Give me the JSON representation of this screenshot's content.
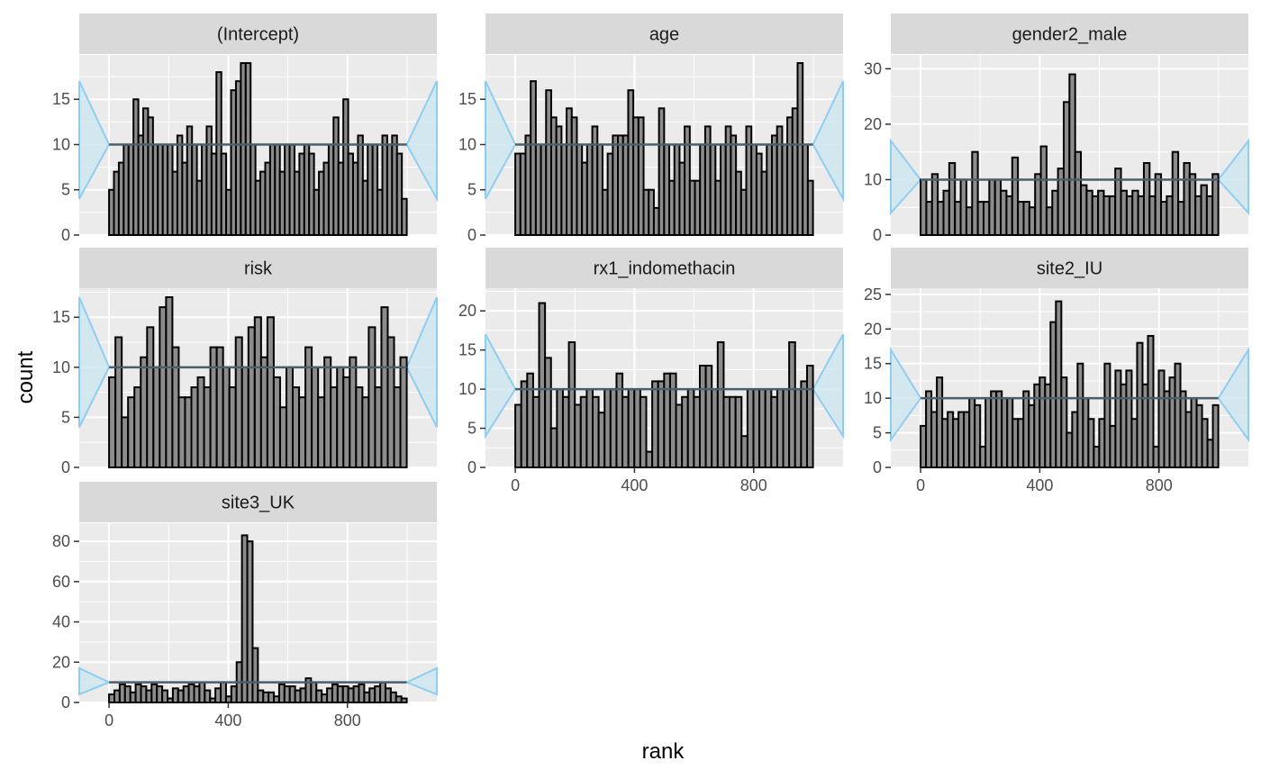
{
  "chart_data": {
    "type": "bar",
    "chart_kind": "rank histogram (faceted)",
    "xlabel": "rank",
    "ylabel": "count",
    "x_ticks": [
      0,
      400,
      800
    ],
    "xlim": [
      -100,
      1100
    ],
    "bin_count": 50,
    "rank_range": [
      0,
      999
    ],
    "expected_count": 10,
    "band_bottom": [
      4,
      17
    ],
    "band_waist": [
      10,
      10
    ],
    "colors": {
      "panel_bg": "#ebebeb",
      "grid": "#ffffff",
      "strip_bg": "#d9d9d9",
      "bar_fill": "#8c8c8c",
      "bar_outline": "#000000",
      "band_fill": "#cfe6ef",
      "band_line": "#90cdf2",
      "mean_line": "#4a5f6a"
    },
    "facets": [
      {
        "name": "(Intercept)",
        "ylim": [
          0,
          19.9
        ],
        "y_ticks": [
          0,
          5,
          10,
          15
        ],
        "values": [
          5,
          7,
          8,
          10,
          10,
          15,
          11,
          14,
          13,
          10,
          10,
          10,
          10,
          7,
          11,
          8,
          12,
          10,
          6,
          10,
          12,
          9,
          18,
          9,
          5,
          16,
          17,
          19,
          19,
          10,
          6,
          7,
          8,
          10,
          10,
          7,
          10,
          10,
          7,
          9,
          10,
          9,
          5,
          7,
          8,
          10,
          13,
          8,
          15,
          9,
          8,
          11,
          6,
          10,
          10,
          5,
          11,
          10,
          11,
          9,
          4
        ]
      },
      {
        "name": "age",
        "ylim": [
          0,
          19.9
        ],
        "y_ticks": [
          0,
          5,
          10,
          15
        ],
        "values": [
          9,
          9,
          11,
          17,
          10,
          10,
          16,
          13,
          12,
          10,
          14,
          13,
          10,
          8,
          10,
          12,
          10,
          5,
          9,
          11,
          11,
          11,
          16,
          13,
          13,
          5,
          5,
          3,
          14,
          10,
          6,
          10,
          8,
          12,
          6,
          6,
          10,
          12,
          10,
          6,
          10,
          12,
          11,
          7,
          5,
          12,
          10,
          9,
          7,
          10,
          11,
          12,
          10,
          13,
          14,
          19,
          10,
          6
        ]
      },
      {
        "name": "gender2_male",
        "ylim": [
          0,
          32.5
        ],
        "y_ticks": [
          0,
          10,
          20,
          30
        ],
        "values": [
          10,
          6,
          11,
          6,
          8,
          13,
          6,
          10,
          5,
          15,
          6,
          6,
          10,
          10,
          8,
          7,
          14,
          6,
          6,
          5,
          11,
          16,
          5,
          8,
          12,
          24,
          29,
          15,
          9,
          8,
          7,
          8,
          7,
          7,
          12,
          8,
          7,
          8,
          7,
          13,
          7,
          11,
          6,
          7,
          15,
          6,
          13,
          11,
          7,
          9,
          7,
          11
        ]
      },
      {
        "name": "risk",
        "ylim": [
          0,
          17.9
        ],
        "y_ticks": [
          0,
          5,
          10,
          15
        ],
        "values": [
          9,
          13,
          5,
          7,
          8,
          11,
          14,
          10,
          16,
          17,
          12,
          7,
          7,
          8,
          9,
          8,
          12,
          12,
          10,
          8,
          13,
          10,
          14,
          15,
          11,
          15,
          9,
          6,
          10,
          8,
          7,
          12,
          10,
          7,
          11,
          8,
          10,
          9,
          11,
          8,
          7,
          14,
          8,
          16,
          13,
          8,
          11
        ]
      },
      {
        "name": "rx1_indomethacin",
        "ylim": [
          0,
          22.9
        ],
        "y_ticks": [
          0,
          5,
          10,
          15,
          20
        ],
        "values": [
          8,
          11,
          12,
          9,
          21,
          14,
          5,
          10,
          9,
          16,
          8,
          9,
          10,
          9,
          7,
          10,
          10,
          12,
          9,
          10,
          10,
          9,
          2,
          11,
          11,
          12,
          12,
          8,
          9,
          10,
          9,
          13,
          13,
          10,
          16,
          9,
          9,
          9,
          4,
          10,
          10,
          10,
          10,
          9,
          10,
          10,
          16,
          10,
          11,
          13
        ]
      },
      {
        "name": "site2_IU",
        "ylim": [
          0,
          25.9
        ],
        "y_ticks": [
          0,
          5,
          10,
          15,
          20,
          25
        ],
        "values": [
          6,
          11,
          8,
          13,
          7,
          8,
          7,
          8,
          8,
          10,
          9,
          3,
          10,
          11,
          11,
          10,
          10,
          7,
          7,
          11,
          9,
          12,
          13,
          12,
          21,
          24,
          13,
          5,
          8,
          15,
          10,
          7,
          3,
          7,
          15,
          6,
          14,
          12,
          14,
          7,
          18,
          12,
          19,
          3,
          14,
          11,
          13,
          15,
          11,
          8,
          10,
          9,
          7,
          4,
          9
        ]
      },
      {
        "name": "site3_UK",
        "ylim": [
          0,
          89
        ],
        "y_ticks": [
          0,
          20,
          40,
          60,
          80
        ],
        "values": [
          4,
          6,
          9,
          8,
          5,
          9,
          8,
          6,
          9,
          8,
          6,
          2,
          7,
          6,
          8,
          9,
          8,
          10,
          6,
          2,
          7,
          10,
          3,
          8,
          20,
          83,
          80,
          27,
          6,
          5,
          5,
          3,
          9,
          8,
          8,
          6,
          7,
          12,
          10,
          6,
          4,
          7,
          9,
          8,
          8,
          7,
          8,
          9,
          5,
          7,
          8,
          10,
          7,
          5,
          3,
          2
        ]
      }
    ]
  }
}
